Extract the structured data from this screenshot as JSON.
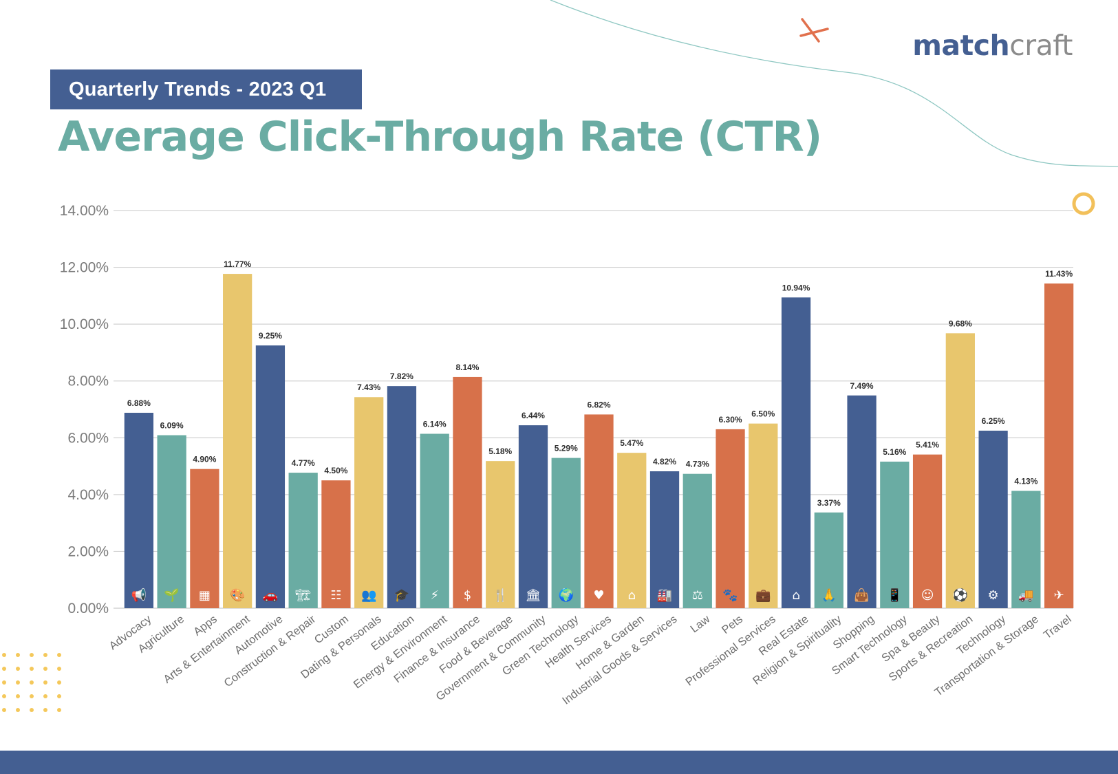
{
  "header": {
    "badge": "Quarterly Trends - 2023 Q1",
    "title": "Average Click-Through Rate (CTR)",
    "logo_part1": "match",
    "logo_part2": "craft"
  },
  "colors": {
    "navy": "#445f92",
    "teal": "#6aaca3",
    "orange": "#d7714a",
    "yellow": "#e8c66d",
    "accent_orange": "#e1704c"
  },
  "chart_data": {
    "type": "bar",
    "title": "Average Click-Through Rate (CTR)",
    "xlabel": "",
    "ylabel": "",
    "ylim": [
      0,
      14
    ],
    "yticks": [
      "0.00%",
      "2.00%",
      "4.00%",
      "6.00%",
      "8.00%",
      "10.00%",
      "12.00%",
      "14.00%"
    ],
    "grid": true,
    "categories": [
      "Advocacy",
      "Agriculture",
      "Apps",
      "Arts & Entertainment",
      "Automotive",
      "Construction & Repair",
      "Custom",
      "Dating & Personals",
      "Education",
      "Energy & Environment",
      "Finance & Insurance",
      "Food & Beverage",
      "Government & Community",
      "Green Technology",
      "Health Services",
      "Home & Garden",
      "Industrial Goods & Services",
      "Law",
      "Pets",
      "Professional Services",
      "Real Estate",
      "Religion & Spirituality",
      "Shopping",
      "Smart Technology",
      "Spa & Beauty",
      "Sports & Recreation",
      "Technology",
      "Transportation & Storage",
      "Travel"
    ],
    "values": [
      6.88,
      6.09,
      4.9,
      11.77,
      9.25,
      4.77,
      4.5,
      7.43,
      7.82,
      6.14,
      8.14,
      5.18,
      6.44,
      5.29,
      6.82,
      5.47,
      4.82,
      4.73,
      6.3,
      6.5,
      10.94,
      3.37,
      7.49,
      5.16,
      5.41,
      9.68,
      6.25,
      4.13,
      11.43
    ],
    "value_labels": [
      "6.88%",
      "6.09%",
      "4.90%",
      "11.77%",
      "9.25%",
      "4.77%",
      "4.50%",
      "7.43%",
      "7.82%",
      "6.14%",
      "8.14%",
      "5.18%",
      "6.44%",
      "5.29%",
      "6.82%",
      "5.47%",
      "4.82%",
      "4.73%",
      "6.30%",
      "6.50%",
      "10.94%",
      "3.37%",
      "7.49%",
      "5.16%",
      "5.41%",
      "9.68%",
      "6.25%",
      "4.13%",
      "11.43%"
    ],
    "bar_colors": [
      "#445f92",
      "#6aaca3",
      "#d7714a",
      "#e8c66d",
      "#445f92",
      "#6aaca3",
      "#d7714a",
      "#e8c66d",
      "#445f92",
      "#6aaca3",
      "#d7714a",
      "#e8c66d",
      "#445f92",
      "#6aaca3",
      "#d7714a",
      "#e8c66d",
      "#445f92",
      "#6aaca3",
      "#d7714a",
      "#e8c66d",
      "#445f92",
      "#6aaca3",
      "#445f92",
      "#6aaca3",
      "#d7714a",
      "#e8c66d",
      "#445f92",
      "#6aaca3",
      "#d7714a"
    ],
    "icons": [
      "megaphone-icon",
      "sprout-icon",
      "app-grid-icon",
      "palette-icon",
      "car-icon",
      "crane-icon",
      "toolbar-icon",
      "people-icon",
      "graduation-cap-icon",
      "wind-solar-icon",
      "finance-chart-icon",
      "plate-cutlery-icon",
      "government-building-icon",
      "green-globe-icon",
      "heart-hand-icon",
      "house-icon",
      "factory-icon",
      "scales-icon",
      "paw-icon",
      "briefcase-icon",
      "house-key-icon",
      "praying-hands-icon",
      "shopping-bag-icon",
      "smartphone-icon",
      "beauty-face-icon",
      "ball-icon",
      "chip-icon",
      "truck-icon",
      "airplane-icon"
    ]
  }
}
